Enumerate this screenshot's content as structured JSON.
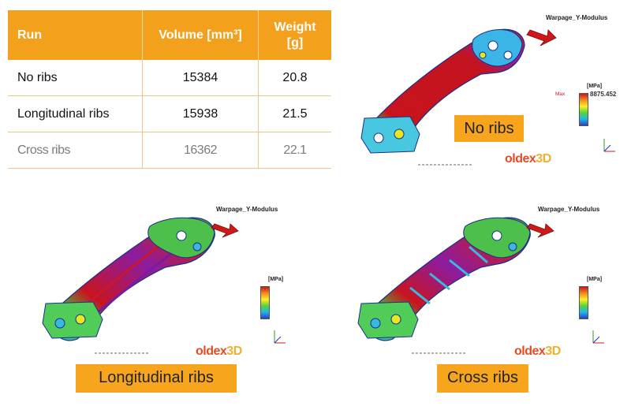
{
  "table": {
    "headers": {
      "run": "Run",
      "volume": "Volume [mm³]",
      "weight": "Weight [g]"
    },
    "rows": [
      {
        "run": "No ribs",
        "volume": "15384",
        "weight": "20.8"
      },
      {
        "run": "Longitudinal ribs",
        "volume": "15938",
        "weight": "21.5"
      },
      {
        "run": "Cross ribs",
        "volume": "16362",
        "weight": "22.1"
      }
    ]
  },
  "panels": {
    "top": {
      "title": "Warpage_Y-Modulus",
      "unit": "[MPa]",
      "max_label": "Max",
      "max_value": "8875.452",
      "caption": "No ribs",
      "brand_main": "oldex",
      "brand_suffix": "3D"
    },
    "left": {
      "title": "Warpage_Y-Modulus",
      "unit": "[MPa]",
      "caption": "Longitudinal ribs",
      "brand_main": "oldex",
      "brand_suffix": "3D"
    },
    "right": {
      "title": "Warpage_Y-Modulus",
      "unit": "[MPa]",
      "caption": "Cross ribs",
      "brand_main": "oldex",
      "brand_suffix": "3D"
    }
  },
  "colors": {
    "accent": "#f3a01c",
    "max": "#d2141c",
    "min": "#2b3ec8",
    "brand": "#e34c24"
  }
}
